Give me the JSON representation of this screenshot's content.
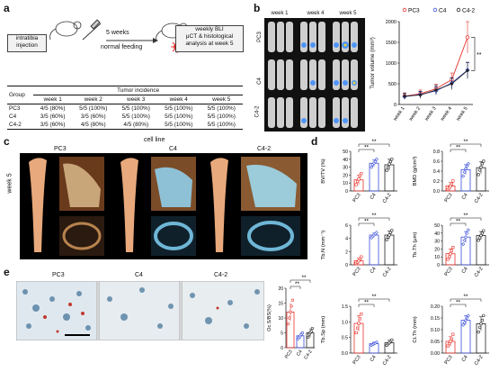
{
  "panels": {
    "a": "a",
    "b": "b",
    "c": "c",
    "d": "d",
    "e": "e"
  },
  "schema": {
    "box1": "intratibia injection",
    "arrow_top": "5 weeks",
    "arrow_bottom": "normal feeding",
    "box2_line1": "weekly BLI",
    "box2_line2": "μCT & histological",
    "box2_line3": "analysis at week 5"
  },
  "table": {
    "title": "Tumor incidence",
    "group_header": "Group",
    "weeks": [
      "week 1",
      "week 2",
      "week 3",
      "week 4",
      "week 5"
    ],
    "rows": [
      {
        "group": "PC3",
        "values": [
          "4/5 (80%)",
          "5/5 (100%)",
          "5/5 (100%)",
          "5/5 (100%)",
          "5/5 (100%)"
        ]
      },
      {
        "group": "C4",
        "values": [
          "3/5 (60%)",
          "3/5 (60%)",
          "5/5 (100%)",
          "5/5 (100%)",
          "5/5 (100%)"
        ]
      },
      {
        "group": "C4-2",
        "values": [
          "3/5 (60%)",
          "4/5 (80%)",
          "4/5 (80%)",
          "5/5 (100%)",
          "5/5 (100%)"
        ]
      }
    ]
  },
  "bli": {
    "weeks": [
      "week 1",
      "week 4",
      "week 5"
    ],
    "rows": [
      "PC3",
      "C4",
      "C4-2"
    ]
  },
  "panel_c": {
    "header": "cell line",
    "cols": [
      "PC3",
      "C4",
      "C4-2"
    ],
    "side": "week 5"
  },
  "panel_e": {
    "cols": [
      "PC3",
      "C4",
      "C4-2"
    ]
  },
  "colors": {
    "PC3": "#e8332c",
    "C4": "#3b4fd8",
    "C4-2": "#222222"
  },
  "chart_data": [
    {
      "type": "line",
      "ylabel": "Tumor volume (mm³)",
      "categories": [
        "week 1",
        "week 2",
        "week 3",
        "week 4",
        "week 5"
      ],
      "ylim": [
        0,
        2000
      ],
      "yticks": [
        "0",
        "500",
        "1000",
        "1500",
        "2000"
      ],
      "legend": [
        "PC3",
        "C4",
        "C4-2"
      ],
      "series": [
        {
          "name": "PC3",
          "values": [
            200,
            260,
            380,
            600,
            1620
          ],
          "err": [
            80,
            90,
            110,
            160,
            380
          ]
        },
        {
          "name": "C4",
          "values": [
            190,
            240,
            330,
            520,
            830
          ],
          "err": [
            70,
            80,
            100,
            130,
            180
          ]
        },
        {
          "name": "C4-2",
          "values": [
            200,
            230,
            350,
            500,
            820
          ],
          "err": [
            70,
            80,
            110,
            140,
            200
          ]
        }
      ],
      "sig": "**"
    },
    {
      "type": "scatter",
      "ylabel": "BV/TV (%)",
      "categories": [
        "PC3",
        "C4",
        "C4-2"
      ],
      "ylim": [
        0,
        50
      ],
      "yticks": [
        "0",
        "10",
        "20",
        "30",
        "40",
        "50"
      ],
      "means": [
        14,
        35,
        33
      ],
      "sd": [
        6,
        4,
        7
      ],
      "points": [
        [
          8,
          12,
          15,
          19,
          22
        ],
        [
          30,
          33,
          35,
          37,
          40
        ],
        [
          26,
          30,
          34,
          37,
          40
        ]
      ],
      "sig": [
        "**",
        "**"
      ]
    },
    {
      "type": "scatter",
      "ylabel": "BMD (g/cm³)",
      "categories": [
        "PC3",
        "C4",
        "C4-2"
      ],
      "ylim": [
        0,
        0.8
      ],
      "yticks": [
        "0.0",
        "0.2",
        "0.4",
        "0.6",
        "0.8"
      ],
      "means": [
        0.1,
        0.43,
        0.47
      ],
      "sd": [
        0.07,
        0.1,
        0.12
      ],
      "points": [
        [
          0.03,
          0.06,
          0.1,
          0.14,
          0.2
        ],
        [
          0.3,
          0.38,
          0.45,
          0.5,
          0.55
        ],
        [
          0.33,
          0.42,
          0.48,
          0.55,
          0.6
        ]
      ],
      "sig": [
        "**",
        "**"
      ]
    },
    {
      "type": "scatter",
      "ylabel": "Tb.N (mm⁻¹)",
      "categories": [
        "PC3",
        "C4",
        "C4-2"
      ],
      "ylim": [
        0,
        6
      ],
      "yticks": [
        "0",
        "2",
        "4",
        "6"
      ],
      "means": [
        0.6,
        4.5,
        4.5
      ],
      "sd": [
        0.4,
        0.3,
        0.6
      ],
      "points": [
        [
          0.2,
          0.4,
          0.6,
          0.9,
          1.2
        ],
        [
          4.1,
          4.3,
          4.5,
          4.7,
          4.9
        ],
        [
          3.8,
          4.2,
          4.5,
          4.9,
          5.2
        ]
      ],
      "sig": [
        "**",
        "**"
      ]
    },
    {
      "type": "scatter",
      "ylabel": "Tb.Th (μm)",
      "categories": [
        "PC3",
        "C4",
        "C4-2"
      ],
      "ylim": [
        0,
        50
      ],
      "yticks": [
        "0",
        "10",
        "20",
        "30",
        "40",
        "50"
      ],
      "means": [
        14,
        35,
        37
      ],
      "sd": [
        6,
        7,
        5
      ],
      "points": [
        [
          7,
          10,
          14,
          18,
          22
        ],
        [
          26,
          31,
          35,
          40,
          44
        ],
        [
          31,
          34,
          37,
          40,
          43
        ]
      ],
      "sig": [
        "**",
        "**"
      ]
    },
    {
      "type": "scatter",
      "ylabel": "Tb.Sp (mm)",
      "categories": [
        "PC3",
        "C4",
        "C4-2"
      ],
      "ylim": [
        0,
        1.5
      ],
      "yticks": [
        "0.0",
        "0.5",
        "1.0",
        "1.5"
      ],
      "means": [
        0.95,
        0.3,
        0.33
      ],
      "sd": [
        0.25,
        0.05,
        0.08
      ],
      "points": [
        [
          0.65,
          0.8,
          0.95,
          1.1,
          1.25
        ],
        [
          0.25,
          0.28,
          0.3,
          0.32,
          0.35
        ],
        [
          0.25,
          0.3,
          0.33,
          0.38,
          0.42
        ]
      ],
      "sig": [
        "**",
        "**"
      ]
    },
    {
      "type": "scatter",
      "ylabel": "Ct.Th (mm)",
      "categories": [
        "PC3",
        "C4",
        "C4-2"
      ],
      "ylim": [
        0,
        0.2
      ],
      "yticks": [
        "0.00",
        "0.05",
        "0.10",
        "0.15",
        "0.20"
      ],
      "means": [
        0.05,
        0.14,
        0.125
      ],
      "sd": [
        0.02,
        0.02,
        0.03
      ],
      "points": [
        [
          0.03,
          0.04,
          0.05,
          0.06,
          0.08
        ],
        [
          0.12,
          0.13,
          0.14,
          0.15,
          0.16
        ],
        [
          0.09,
          0.11,
          0.125,
          0.14,
          0.16
        ]
      ],
      "sig": [
        "**",
        "**"
      ]
    },
    {
      "type": "scatter",
      "ylabel": "Oc.S/BS(%)",
      "categories": [
        "PC3",
        "C4",
        "C4-2"
      ],
      "ylim": [
        0,
        20
      ],
      "yticks": [
        "0",
        "5",
        "10",
        "15",
        "20"
      ],
      "means": [
        12,
        4,
        5
      ],
      "sd": [
        3,
        1,
        1.5
      ],
      "points": [
        [
          8,
          10,
          12,
          14,
          16
        ],
        [
          3,
          3.5,
          4,
          4.5,
          5
        ],
        [
          3.5,
          4.5,
          5,
          5.5,
          6.5
        ]
      ],
      "sig": [
        "**",
        "**"
      ]
    }
  ]
}
